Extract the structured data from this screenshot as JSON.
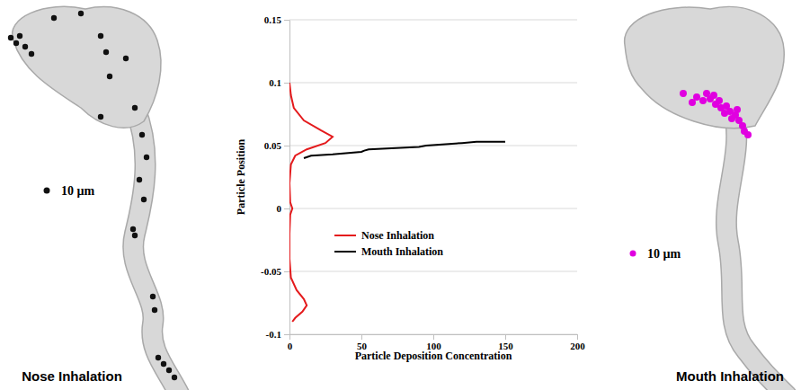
{
  "chart_data": {
    "type": "line",
    "x_label": "Particle Deposition Concentration",
    "y_label": "Particle Position",
    "xlim": [
      0,
      200
    ],
    "xticks": [
      0,
      50,
      100,
      150,
      200
    ],
    "ylim": [
      -0.1,
      0.15
    ],
    "yticks": [
      -0.1,
      -0.05,
      0,
      0.05,
      0.1,
      0.15
    ],
    "grid": true,
    "legend": "center",
    "series": [
      {
        "name": "Nose Inhalation",
        "color": "#e41a1c",
        "line_style": "solid",
        "x": [
          0,
          1,
          3,
          10,
          22,
          30,
          25,
          12,
          4,
          1,
          0,
          0.5,
          2,
          0.5,
          0,
          0,
          1,
          5,
          10,
          12,
          9,
          4,
          2
        ],
        "values": [
          0.1,
          0.09,
          0.08,
          0.07,
          0.062,
          0.057,
          0.052,
          0.047,
          0.042,
          0.035,
          0.02,
          0.005,
          0,
          -0.005,
          -0.02,
          -0.04,
          -0.055,
          -0.065,
          -0.072,
          -0.077,
          -0.082,
          -0.087,
          -0.09
        ]
      },
      {
        "name": "Mouth Inhalation",
        "color": "#000000",
        "line_style": "solid",
        "x": [
          10,
          15,
          30,
          50,
          52,
          55,
          90,
          95,
          120,
          130,
          150
        ],
        "values": [
          0.04,
          0.042,
          0.043,
          0.045,
          0.046,
          0.047,
          0.049,
          0.05,
          0.052,
          0.053,
          0.053
        ]
      }
    ]
  },
  "illustrations": [
    {
      "title": "Nose Inhalation",
      "particle_label": "10 µm"
    },
    {
      "title": "Mouth Inhalation",
      "particle_label": "10 µm"
    }
  ]
}
